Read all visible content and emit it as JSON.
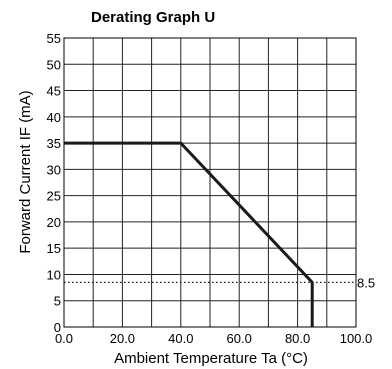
{
  "chart_data": {
    "type": "line",
    "title": "Derating Graph U",
    "xlabel": "Ambient Temperature Ta (°C)",
    "ylabel": "Forward Current IF (mA)",
    "xlim": [
      0,
      100
    ],
    "ylim": [
      0,
      55
    ],
    "x_ticks": [
      "0.0",
      "20.0",
      "40.0",
      "60.0",
      "80.0",
      "100.0"
    ],
    "y_ticks": [
      "0",
      "5",
      "10",
      "15",
      "20",
      "25",
      "30",
      "35",
      "40",
      "45",
      "50",
      "55"
    ],
    "grid": true,
    "series": [
      {
        "x": [
          0,
          40,
          85,
          85
        ],
        "y": [
          35,
          35,
          8.5,
          0
        ]
      }
    ],
    "reference_line": {
      "y": 8.5,
      "label": "8.5",
      "style": "dotted"
    }
  }
}
